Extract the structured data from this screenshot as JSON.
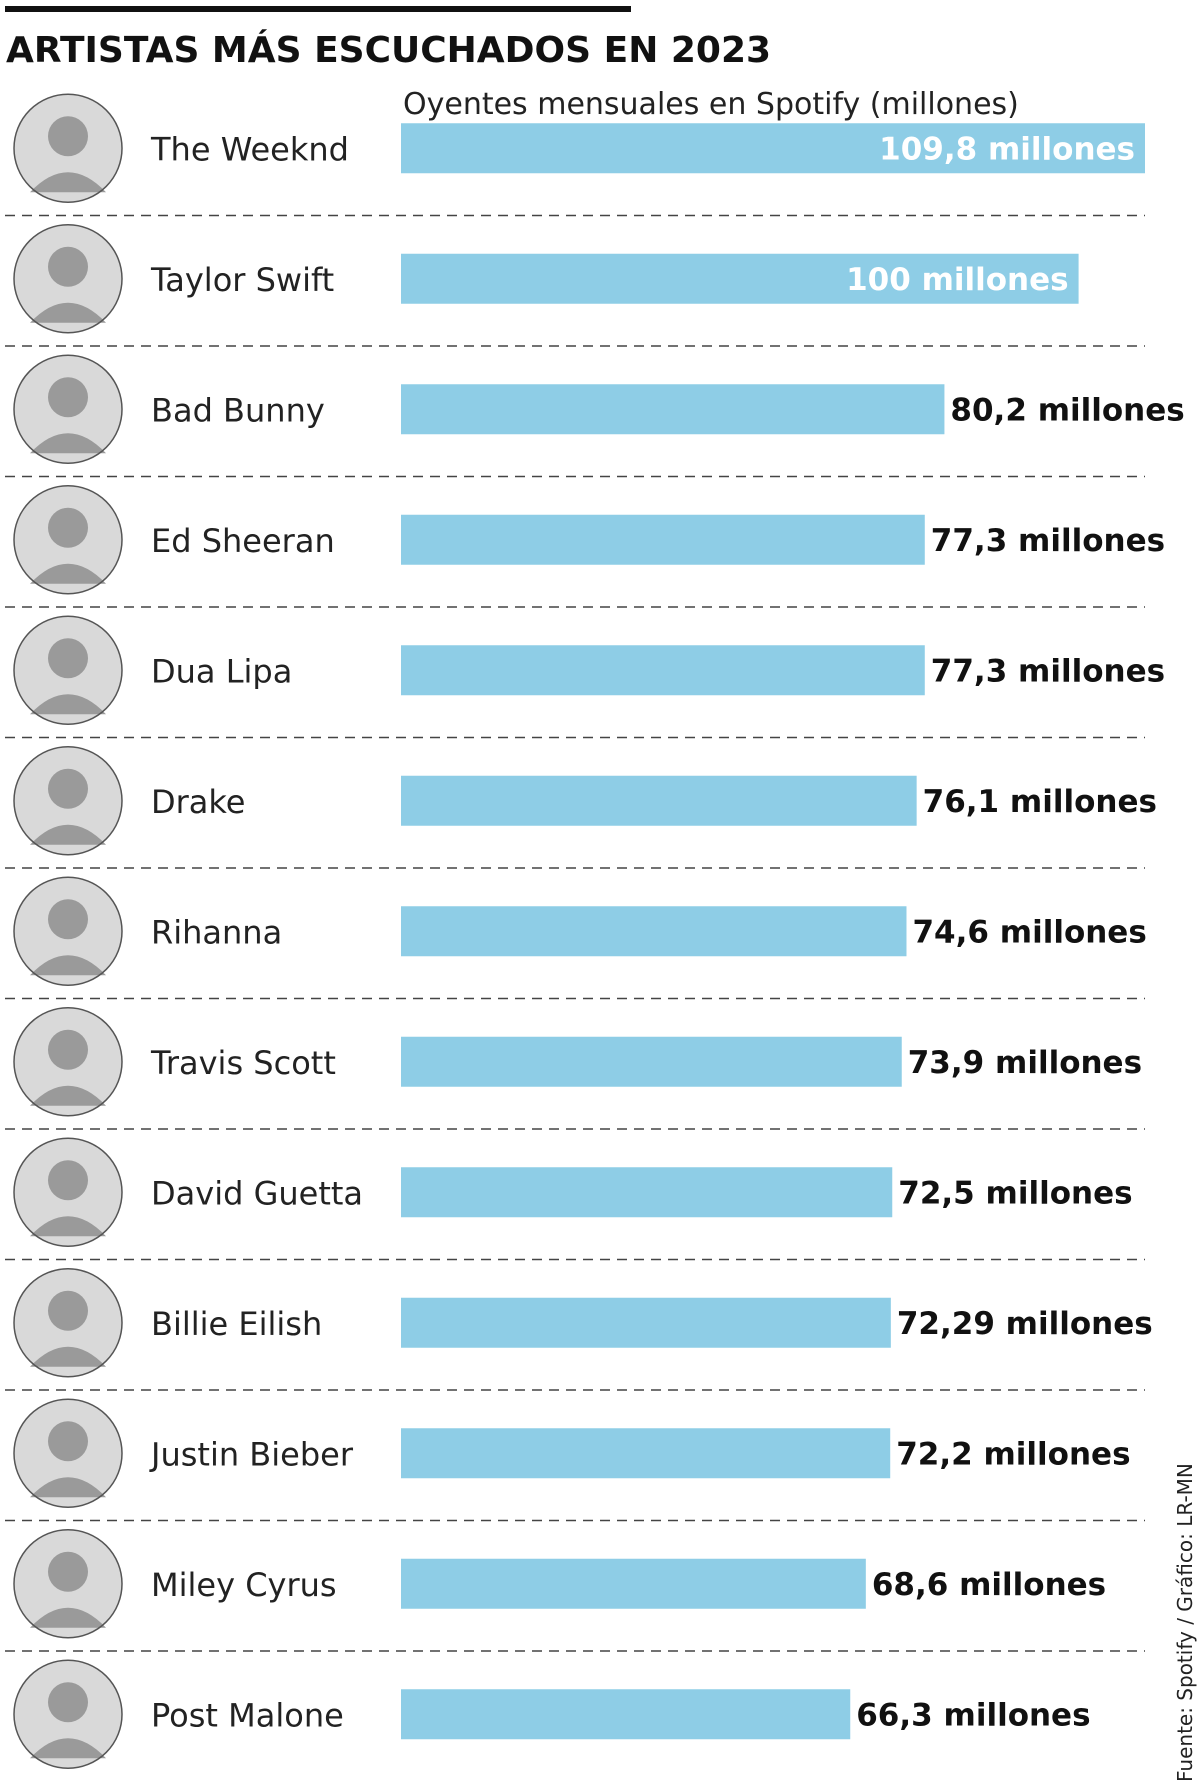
{
  "chart_data": {
    "type": "bar",
    "orientation": "horizontal",
    "title": "ARTISTAS MÁS ESCUCHADOS EN 2023",
    "subtitle": "Oyentes mensuales en Spotify (millones)",
    "categories": [
      "The Weeknd",
      "Taylor Swift",
      "Bad Bunny",
      "Ed Sheeran",
      "Dua Lipa",
      "Drake",
      "Rihanna",
      "Travis Scott",
      "David Guetta",
      "Billie Eilish",
      "Justin Bieber",
      "Miley Cyrus",
      "Post Malone"
    ],
    "values": [
      109.8,
      100,
      80.2,
      77.3,
      77.3,
      76.1,
      74.6,
      73.9,
      72.5,
      72.29,
      72.2,
      68.6,
      66.3
    ],
    "value_labels": [
      "109,8 millones",
      "100 millones",
      "80,2 millones",
      "77,3 millones",
      "77,3 millones",
      "76,1 millones",
      "74,6 millones",
      "73,9 millones",
      "72,5 millones",
      "72,29 millones",
      "72,2 millones",
      "68,6 millones",
      "66,3 millones"
    ],
    "source": "Fuente: Spotify / Gráfico: LR-MN",
    "bar_color": "#8ecde6",
    "grid": false,
    "legend": "none"
  }
}
